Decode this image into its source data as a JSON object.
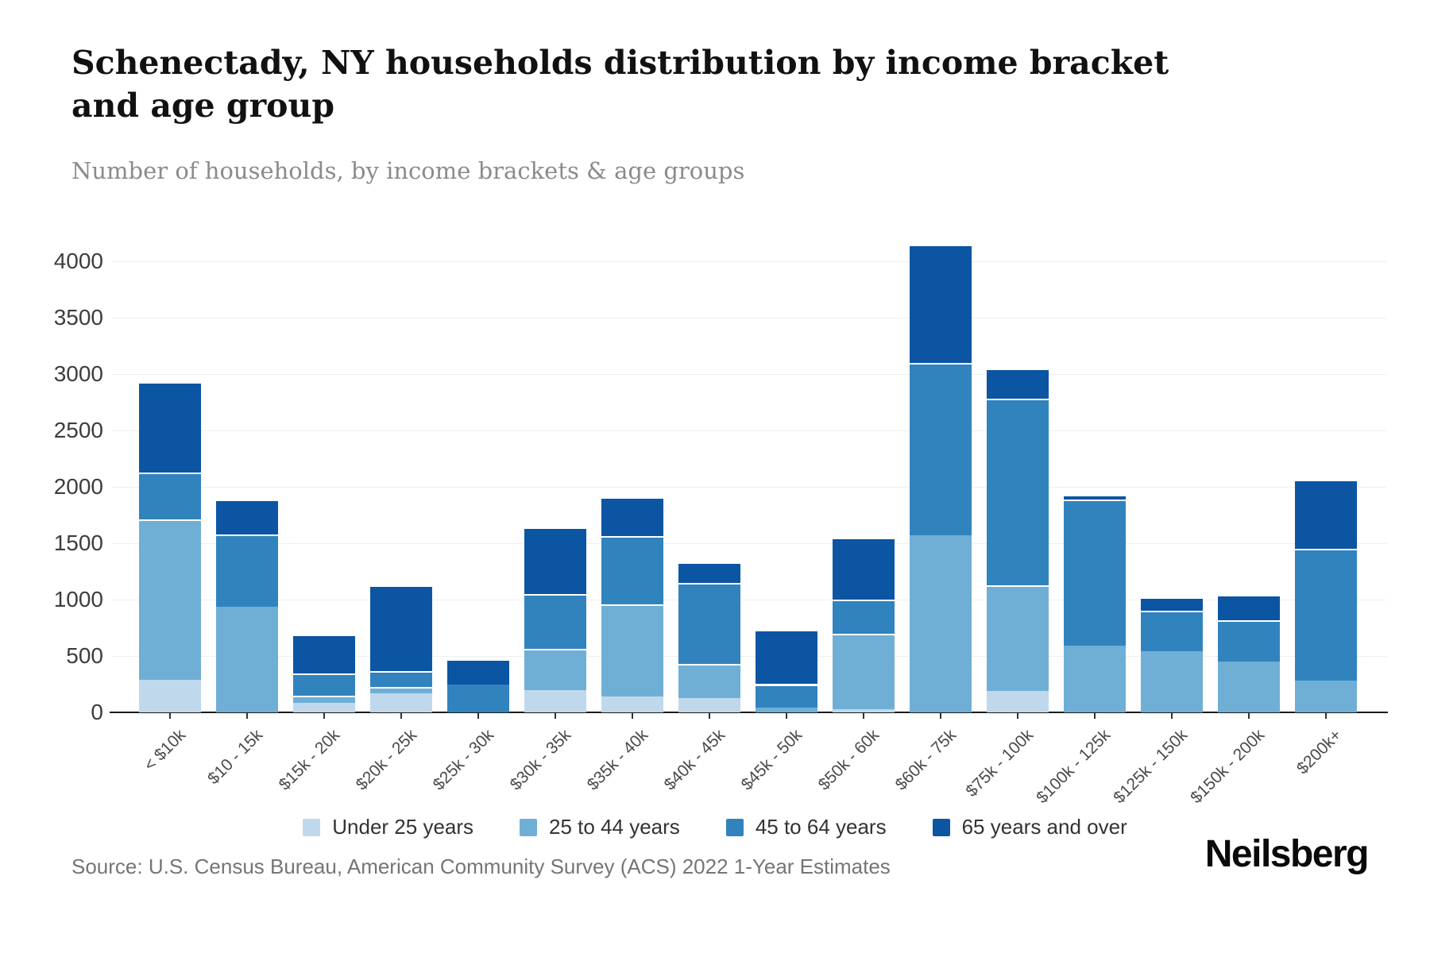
{
  "header": {
    "title": "Schenectady, NY households distribution by income bracket and age group",
    "subtitle": "Number of households, by income brackets & age groups"
  },
  "footer": {
    "source": "Source: U.S. Census Bureau, American Community Survey (ACS) 2022 1-Year Estimates",
    "logo": "Neilsberg"
  },
  "chart_data": {
    "type": "bar",
    "stacked": true,
    "title": "Schenectady, NY households distribution by income bracket and age group",
    "xlabel": "",
    "ylabel": "Number of households",
    "ylim": [
      0,
      4000
    ],
    "y_ticks": [
      0,
      500,
      1000,
      1500,
      2000,
      2500,
      3000,
      3500,
      4000
    ],
    "grid": "horizontal",
    "legend_position": "bottom",
    "categories": [
      "< $10k",
      "$10 - 15k",
      "$15k - 20k",
      "$20k - 25k",
      "$25k - 30k",
      "$30k - 35k",
      "$35k - 40k",
      "$40k - 45k",
      "$45k - 50k",
      "$50k - 60k",
      "$60k - 75k",
      "$75k - 100k",
      "$100k - 125k",
      "$125k - 150k",
      "$150k - 200k",
      "$200k+"
    ],
    "series": [
      {
        "name": "Under 25 years",
        "color": "#bfd8ec",
        "values": [
          290,
          0,
          85,
          170,
          0,
          200,
          140,
          130,
          0,
          30,
          0,
          190,
          0,
          0,
          0,
          0
        ]
      },
      {
        "name": "25 to 44 years",
        "color": "#6fafd6",
        "values": [
          1420,
          940,
          65,
          55,
          0,
          360,
          820,
          300,
          40,
          670,
          1570,
          940,
          590,
          540,
          450,
          285
        ]
      },
      {
        "name": "45 to 64 years",
        "color": "#3183bd",
        "values": [
          420,
          640,
          195,
          140,
          245,
          490,
          600,
          720,
          210,
          300,
          1530,
          1650,
          1300,
          360,
          365,
          1165
        ]
      },
      {
        "name": "65 years and over",
        "color": "#0b55a3",
        "values": [
          800,
          310,
          345,
          760,
          225,
          590,
          350,
          180,
          480,
          550,
          1050,
          270,
          40,
          120,
          225,
          610
        ]
      }
    ]
  }
}
